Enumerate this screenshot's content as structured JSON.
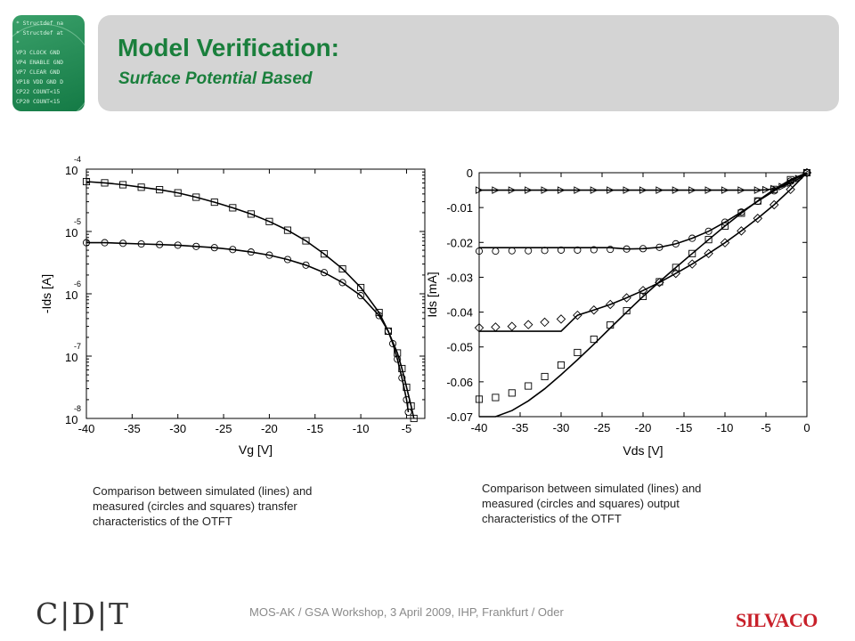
{
  "slide": {
    "title": "Model Verification:",
    "subtitle": "Surface Potential Based",
    "code_lines": [
      "* Structdef na",
      "* Structdef at",
      "*",
      "VP3 CLOCK GND",
      "VP4 ENABLE GND",
      "VP7 CLEAR GND",
      "VP18 VDD GND D",
      "CP22 COUNT<15",
      "CP20 COUNT<15"
    ],
    "caption_left": [
      "Comparison between simulated (lines) and",
      "measured (circles and squares) transfer",
      "characteristics of the OTFT"
    ],
    "caption_right": [
      "Comparison between simulated (lines) and",
      "measured (circles and squares) output",
      "characteristics of the OTFT"
    ],
    "footer": "MOS-AK / GSA Workshop, 3 April 2009, IHP, Frankfurt / Oder",
    "logo_left": "C|D|T",
    "logo_right": "SILVACO"
  },
  "chart_data": [
    {
      "type": "scatter",
      "title": "",
      "xlabel": "Vg [V]",
      "ylabel": "-Ids [A]",
      "xlim": [
        -40,
        -3
      ],
      "ylim_exponent": [
        -8,
        -4
      ],
      "y_scale": "log",
      "xticks": [
        -40,
        -35,
        -30,
        -25,
        -20,
        -15,
        -10,
        -5
      ],
      "xtick_labels": [
        "-40",
        "-35",
        "-30",
        "-25",
        "-20",
        "-15",
        "-10",
        "-5"
      ],
      "ytick_exponents": [
        -8,
        -7,
        -6,
        -5,
        -4
      ],
      "ytick_base": "10",
      "ytick_exps": [
        "-8",
        "-7",
        "-6",
        "-5",
        "-4"
      ],
      "series": [
        {
          "marker": "square",
          "x": [
            -40,
            -38,
            -36,
            -34,
            -32,
            -30,
            -28,
            -26,
            -24,
            -22,
            -20,
            -18,
            -16,
            -14,
            -12,
            -10,
            -8,
            -7,
            -6,
            -5.5,
            -5,
            -4.5,
            -4.2
          ],
          "log_y": [
            -4.2,
            -4.22,
            -4.25,
            -4.29,
            -4.33,
            -4.38,
            -4.45,
            -4.53,
            -4.62,
            -4.72,
            -4.84,
            -4.98,
            -5.15,
            -5.36,
            -5.6,
            -5.9,
            -6.3,
            -6.6,
            -6.95,
            -7.2,
            -7.5,
            -7.8,
            -8.0
          ]
        },
        {
          "marker": "circle",
          "x": [
            -40,
            -38,
            -36,
            -34,
            -32,
            -30,
            -28,
            -26,
            -24,
            -22,
            -20,
            -18,
            -16,
            -14,
            -12,
            -10,
            -8,
            -7,
            -6.5,
            -6,
            -5.5,
            -5,
            -4.8
          ],
          "log_y": [
            -5.18,
            -5.18,
            -5.19,
            -5.2,
            -5.21,
            -5.22,
            -5.24,
            -5.26,
            -5.29,
            -5.33,
            -5.38,
            -5.45,
            -5.54,
            -5.66,
            -5.82,
            -6.03,
            -6.35,
            -6.6,
            -6.8,
            -7.05,
            -7.35,
            -7.7,
            -7.9
          ]
        }
      ]
    },
    {
      "type": "scatter",
      "title": "",
      "xlabel": "Vds [V]",
      "ylabel": "Ids [mA]",
      "xlim": [
        -40,
        0
      ],
      "ylim": [
        -0.07,
        0
      ],
      "xticks": [
        -40,
        -35,
        -30,
        -25,
        -20,
        -15,
        -10,
        -5,
        0
      ],
      "xtick_labels": [
        "-40",
        "-35",
        "-30",
        "-25",
        "-20",
        "-15",
        "-10",
        "-5",
        "0"
      ],
      "yticks": [
        0,
        -0.01,
        -0.02,
        -0.03,
        -0.04,
        -0.05,
        -0.06,
        -0.07
      ],
      "ytick_labels": [
        "0",
        "-0.01",
        "-0.02",
        "-0.03",
        "-0.04",
        "-0.05",
        "-0.06",
        "-0.07"
      ],
      "series": [
        {
          "marker": "triangle-right",
          "x": [
            -40,
            -38,
            -36,
            -34,
            -32,
            -30,
            -28,
            -26,
            -24,
            -22,
            -20,
            -18,
            -16,
            -14,
            -12,
            -10,
            -8,
            -6,
            -5,
            -4,
            -3,
            -2,
            -1,
            0
          ],
          "y": [
            -0.005,
            -0.005,
            -0.005,
            -0.005,
            -0.005,
            -0.005,
            -0.005,
            -0.005,
            -0.005,
            -0.005,
            -0.005,
            -0.005,
            -0.005,
            -0.005,
            -0.005,
            -0.005,
            -0.005,
            -0.005,
            -0.0049,
            -0.0046,
            -0.004,
            -0.003,
            -0.0017,
            0
          ]
        },
        {
          "marker": "circle",
          "x": [
            -40,
            -38,
            -36,
            -34,
            -32,
            -30,
            -28,
            -26,
            -24,
            -22,
            -20,
            -18,
            -16,
            -14,
            -12,
            -10,
            -8,
            -6,
            -4,
            -2,
            0
          ],
          "y": [
            -0.0225,
            -0.0225,
            -0.0224,
            -0.0224,
            -0.0223,
            -0.0222,
            -0.0222,
            -0.0221,
            -0.022,
            -0.0219,
            -0.0218,
            -0.0214,
            -0.0204,
            -0.0188,
            -0.0168,
            -0.0142,
            -0.0113,
            -0.0082,
            -0.0052,
            -0.0024,
            0
          ]
        },
        {
          "marker": "diamond",
          "x": [
            -40,
            -38,
            -36,
            -34,
            -32,
            -30,
            -28,
            -26,
            -24,
            -22,
            -20,
            -18,
            -16,
            -14,
            -12,
            -10,
            -8,
            -6,
            -4,
            -2,
            0
          ],
          "y": [
            -0.0445,
            -0.0443,
            -0.0441,
            -0.0436,
            -0.0429,
            -0.042,
            -0.0409,
            -0.0394,
            -0.0378,
            -0.0359,
            -0.0338,
            -0.0315,
            -0.0289,
            -0.0262,
            -0.0232,
            -0.0201,
            -0.0167,
            -0.0131,
            -0.0092,
            -0.0048,
            0
          ]
        },
        {
          "marker": "square",
          "x": [
            -40,
            -38,
            -36,
            -34,
            -32,
            -30,
            -28,
            -26,
            -24,
            -22,
            -20,
            -18,
            -16,
            -14,
            -12,
            -10,
            -8,
            -6,
            -4,
            -2,
            0
          ],
          "y": [
            -0.065,
            -0.0645,
            -0.0632,
            -0.0612,
            -0.0585,
            -0.0552,
            -0.0516,
            -0.0478,
            -0.0437,
            -0.0396,
            -0.0355,
            -0.0313,
            -0.0272,
            -0.0232,
            -0.0192,
            -0.0153,
            -0.0116,
            -0.0081,
            -0.0048,
            -0.002,
            0
          ]
        }
      ]
    }
  ]
}
